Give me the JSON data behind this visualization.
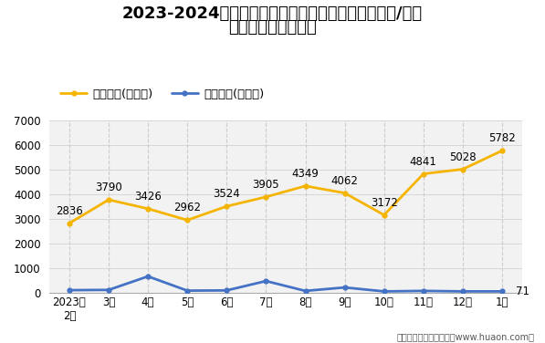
{
  "title_line1": "2023-2024年株洲高新技术产业开发区（境内目的地/货源",
  "title_line2": "地）进、出口额统计",
  "x_labels": [
    "2023年\n2月",
    "3月",
    "4月",
    "5月",
    "6月",
    "7月",
    "8月",
    "9月",
    "10月",
    "11月",
    "12月",
    "1月"
  ],
  "export_values": [
    2836,
    3790,
    3426,
    2962,
    3524,
    3905,
    4349,
    4062,
    3172,
    4841,
    5028,
    5782
  ],
  "import_values": [
    120,
    130,
    680,
    100,
    110,
    490,
    90,
    230,
    70,
    90,
    71,
    71
  ],
  "export_label": "出口总额(万美元)",
  "import_label": "进口总额(万美元)",
  "export_color": "#F5B400",
  "import_color": "#4472C4",
  "ylim": [
    0,
    7000
  ],
  "yticks": [
    0,
    1000,
    2000,
    3000,
    4000,
    5000,
    6000,
    7000
  ],
  "footer": "制图：华经产业研究院（www.huaon.com）",
  "bg_color": "#FFFFFF",
  "plot_bg_color": "#F2F2F2",
  "grid_color": "#CCCCCC",
  "title_fontsize": 13,
  "label_fontsize": 9.5,
  "tick_fontsize": 8.5,
  "annotation_fontsize": 8.5
}
